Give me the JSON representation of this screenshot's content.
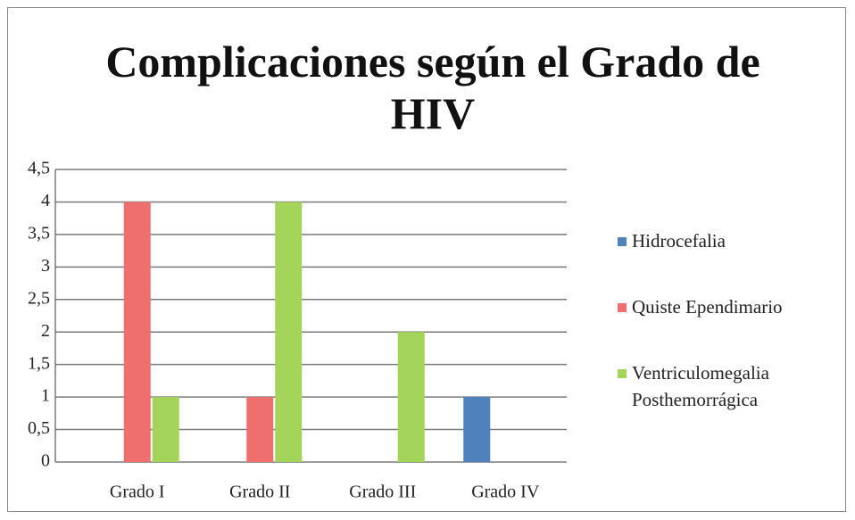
{
  "chart_data": {
    "type": "bar",
    "title": "Complicaciones según el Grado de HIV",
    "categories": [
      "Grado I",
      "Grado II",
      "Grado III",
      "Grado IV"
    ],
    "series": [
      {
        "name": "Hidrocefalia",
        "color": "#4f81bd",
        "values": [
          0,
          0,
          0,
          1
        ]
      },
      {
        "name": "Quiste Ependimario",
        "color": "#ef6f6f",
        "values": [
          4,
          1,
          0,
          0
        ]
      },
      {
        "name": "Ventriculomegalia Posthemorrágica",
        "color": "#a4d45a",
        "values": [
          1,
          4,
          2,
          0
        ]
      }
    ],
    "ylim": [
      0,
      4.5
    ],
    "yticks": [
      0,
      {
        "value": 0.5,
        "label": "0,5"
      },
      1,
      {
        "value": 1.5,
        "label": "1,5"
      },
      2,
      {
        "value": 2.5,
        "label": "2,5"
      },
      3,
      {
        "value": 3.5,
        "label": "3,5"
      },
      4,
      {
        "value": 4.5,
        "label": "4,5"
      }
    ],
    "grid": true,
    "legend": "right"
  }
}
